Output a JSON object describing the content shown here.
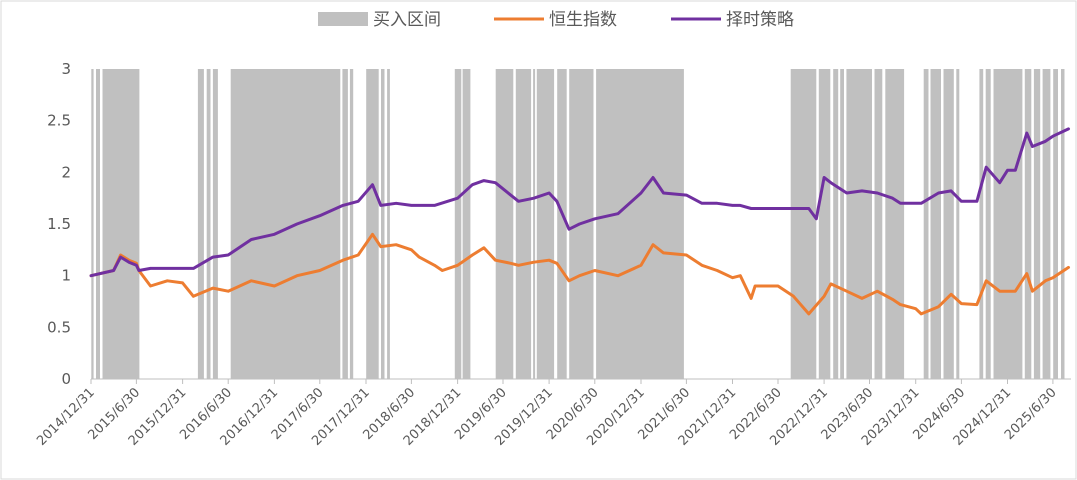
{
  "chart_data": {
    "type": "line",
    "title": "",
    "xlabel": "",
    "ylabel": "",
    "ylim": [
      0,
      3
    ],
    "yticks": [
      "0",
      "0.5",
      "1",
      "1.5",
      "2",
      "2.5",
      "3"
    ],
    "xticks": [
      "2014/12/31",
      "2015/6/30",
      "2015/12/31",
      "2016/6/30",
      "2016/12/31",
      "2017/6/30",
      "2017/12/31",
      "2018/6/30",
      "2018/12/31",
      "2019/6/30",
      "2019/12/31",
      "2020/6/30",
      "2020/12/31",
      "2021/6/30",
      "2021/12/31",
      "2022/6/30",
      "2022/12/31",
      "2023/6/30",
      "2023/12/31",
      "2024/6/30",
      "2024/12/31",
      "2025/6/30"
    ],
    "grid": false,
    "legend_position": "top",
    "legend": [
      {
        "label": "买入区间",
        "kind": "area",
        "color": "#c0c0c0"
      },
      {
        "label": "恒生指数",
        "kind": "line",
        "color": "#ed7d31"
      },
      {
        "label": "择时策略",
        "kind": "line",
        "color": "#7030a0"
      }
    ],
    "buy_intervals": [
      [
        "2015-01-01",
        "2015-01-10"
      ],
      [
        "2015-01-20",
        "2015-02-05"
      ],
      [
        "2015-02-15",
        "2015-07-12"
      ],
      [
        "2016-03-01",
        "2016-03-25"
      ],
      [
        "2016-04-05",
        "2016-04-20"
      ],
      [
        "2016-04-30",
        "2016-05-20"
      ],
      [
        "2016-07-10",
        "2017-09-20"
      ],
      [
        "2017-09-28",
        "2017-10-20"
      ],
      [
        "2017-10-28",
        "2017-11-10"
      ],
      [
        "2018-01-01",
        "2018-02-20"
      ],
      [
        "2018-03-01",
        "2018-03-15"
      ],
      [
        "2018-03-25",
        "2018-04-05"
      ],
      [
        "2018-12-20",
        "2019-01-15"
      ],
      [
        "2019-01-20",
        "2019-02-20"
      ],
      [
        "2019-06-01",
        "2019-08-10"
      ],
      [
        "2019-08-20",
        "2019-10-20"
      ],
      [
        "2019-10-28",
        "2019-11-05"
      ],
      [
        "2019-11-12",
        "2020-01-20"
      ],
      [
        "2020-02-01",
        "2020-03-10"
      ],
      [
        "2020-03-20",
        "2020-06-25"
      ],
      [
        "2020-07-05",
        "2021-06-20"
      ],
      [
        "2022-08-20",
        "2022-11-30"
      ],
      [
        "2022-12-10",
        "2023-01-25"
      ],
      [
        "2023-02-05",
        "2023-02-25"
      ],
      [
        "2023-03-05",
        "2023-03-20"
      ],
      [
        "2023-03-30",
        "2023-07-10"
      ],
      [
        "2023-07-20",
        "2023-08-20"
      ],
      [
        "2023-09-01",
        "2023-11-15"
      ],
      [
        "2024-02-01",
        "2024-02-20"
      ],
      [
        "2024-02-28",
        "2024-04-10"
      ],
      [
        "2024-04-20",
        "2024-05-31"
      ],
      [
        "2024-06-10",
        "2024-06-22"
      ],
      [
        "2024-09-10",
        "2024-09-25"
      ],
      [
        "2024-10-05",
        "2024-10-25"
      ],
      [
        "2024-11-05",
        "2025-02-28"
      ],
      [
        "2025-03-10",
        "2025-04-05"
      ],
      [
        "2025-04-15",
        "2025-05-10"
      ],
      [
        "2025-05-20",
        "2025-06-20"
      ],
      [
        "2025-07-01",
        "2025-07-20"
      ],
      [
        "2025-08-01",
        "2025-08-15"
      ]
    ],
    "series": [
      {
        "name": "恒生指数",
        "color": "#ed7d31",
        "x": [
          "2014-12-31",
          "2015-03-31",
          "2015-04-28",
          "2015-05-31",
          "2015-06-30",
          "2015-07-10",
          "2015-08-25",
          "2015-10-31",
          "2015-12-31",
          "2016-02-12",
          "2016-04-30",
          "2016-06-30",
          "2016-09-30",
          "2016-12-31",
          "2017-03-31",
          "2017-06-30",
          "2017-09-30",
          "2017-11-30",
          "2018-01-26",
          "2018-02-28",
          "2018-04-30",
          "2018-06-30",
          "2018-07-31",
          "2018-09-30",
          "2018-10-31",
          "2018-12-31",
          "2019-02-28",
          "2019-04-15",
          "2019-05-31",
          "2019-07-31",
          "2019-08-31",
          "2019-10-31",
          "2019-12-31",
          "2020-01-31",
          "2020-03-19",
          "2020-04-30",
          "2020-06-30",
          "2020-09-30",
          "2020-12-31",
          "2021-02-17",
          "2021-03-31",
          "2021-06-30",
          "2021-08-31",
          "2021-10-31",
          "2021-12-31",
          "2022-01-31",
          "2022-03-15",
          "2022-03-31",
          "2022-06-30",
          "2022-08-31",
          "2022-10-31",
          "2022-12-31",
          "2023-01-27",
          "2023-03-31",
          "2023-05-31",
          "2023-07-31",
          "2023-09-30",
          "2023-10-31",
          "2023-12-31",
          "2024-01-22",
          "2024-03-31",
          "2024-05-20",
          "2024-06-30",
          "2024-08-31",
          "2024-10-07",
          "2024-11-30",
          "2024-12-31",
          "2025-01-31",
          "2025-03-18",
          "2025-04-09",
          "2025-05-31",
          "2025-06-30",
          "2025-08-31"
        ],
        "y": [
          1.0,
          1.05,
          1.2,
          1.15,
          1.12,
          1.05,
          0.9,
          0.95,
          0.93,
          0.8,
          0.88,
          0.85,
          0.95,
          0.9,
          1.0,
          1.05,
          1.15,
          1.2,
          1.4,
          1.28,
          1.3,
          1.25,
          1.18,
          1.1,
          1.05,
          1.1,
          1.2,
          1.27,
          1.15,
          1.12,
          1.1,
          1.13,
          1.15,
          1.12,
          0.95,
          1.0,
          1.05,
          1.0,
          1.1,
          1.3,
          1.22,
          1.2,
          1.1,
          1.05,
          0.98,
          1.0,
          0.78,
          0.9,
          0.9,
          0.8,
          0.63,
          0.8,
          0.92,
          0.85,
          0.78,
          0.85,
          0.77,
          0.72,
          0.68,
          0.63,
          0.7,
          0.82,
          0.73,
          0.72,
          0.95,
          0.85,
          0.85,
          0.85,
          1.02,
          0.85,
          0.95,
          0.98,
          1.08
        ]
      },
      {
        "name": "择时策略",
        "color": "#7030a0",
        "x": [
          "2014-12-31",
          "2015-03-31",
          "2015-04-28",
          "2015-05-31",
          "2015-06-30",
          "2015-07-10",
          "2015-08-25",
          "2015-12-31",
          "2016-02-12",
          "2016-04-30",
          "2016-06-30",
          "2016-09-30",
          "2016-12-31",
          "2017-03-31",
          "2017-06-30",
          "2017-09-30",
          "2017-11-30",
          "2018-01-26",
          "2018-02-28",
          "2018-04-30",
          "2018-06-30",
          "2018-09-30",
          "2018-12-31",
          "2019-02-28",
          "2019-04-15",
          "2019-05-31",
          "2019-07-31",
          "2019-08-31",
          "2019-10-31",
          "2019-12-31",
          "2020-01-31",
          "2020-03-19",
          "2020-04-30",
          "2020-06-30",
          "2020-09-30",
          "2020-12-31",
          "2021-02-17",
          "2021-03-31",
          "2021-06-30",
          "2021-08-31",
          "2021-10-31",
          "2021-12-31",
          "2022-01-31",
          "2022-03-15",
          "2022-08-31",
          "2022-10-31",
          "2022-11-30",
          "2022-12-31",
          "2023-01-27",
          "2023-03-31",
          "2023-05-31",
          "2023-07-31",
          "2023-09-30",
          "2023-10-31",
          "2023-12-31",
          "2024-01-22",
          "2024-03-31",
          "2024-05-20",
          "2024-06-30",
          "2024-08-31",
          "2024-10-07",
          "2024-11-30",
          "2024-12-31",
          "2025-01-31",
          "2025-03-18",
          "2025-04-09",
          "2025-05-31",
          "2025-06-30",
          "2025-08-31"
        ],
        "y": [
          1.0,
          1.05,
          1.18,
          1.13,
          1.1,
          1.05,
          1.07,
          1.07,
          1.07,
          1.18,
          1.2,
          1.35,
          1.4,
          1.5,
          1.58,
          1.68,
          1.72,
          1.88,
          1.68,
          1.7,
          1.68,
          1.68,
          1.75,
          1.88,
          1.92,
          1.9,
          1.78,
          1.72,
          1.75,
          1.8,
          1.72,
          1.45,
          1.5,
          1.55,
          1.6,
          1.8,
          1.95,
          1.8,
          1.78,
          1.7,
          1.7,
          1.68,
          1.68,
          1.65,
          1.65,
          1.65,
          1.55,
          1.95,
          1.9,
          1.8,
          1.82,
          1.8,
          1.75,
          1.7,
          1.7,
          1.7,
          1.8,
          1.82,
          1.72,
          1.72,
          2.05,
          1.9,
          2.02,
          2.02,
          2.38,
          2.25,
          2.3,
          2.35,
          2.42
        ]
      }
    ]
  }
}
